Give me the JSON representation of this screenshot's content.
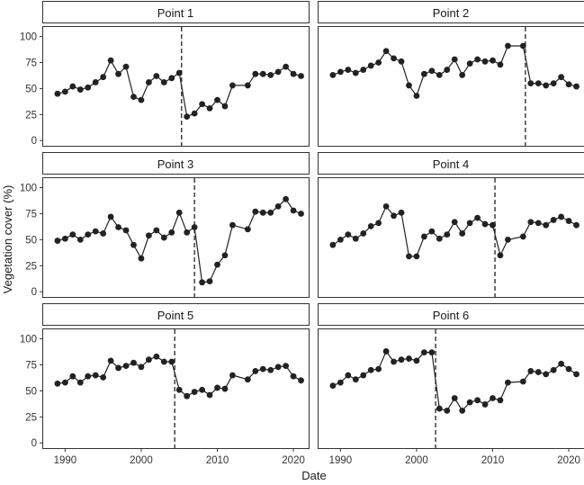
{
  "chart_data": {
    "type": "line",
    "xlabel": "Date",
    "ylabel": "Vegetation cover (%)",
    "xlim": [
      1987,
      2022
    ],
    "ylim": [
      -5,
      110
    ],
    "x_ticks": [
      1990,
      2000,
      2010,
      2020
    ],
    "y_ticks": [
      0,
      25,
      50,
      75,
      100
    ],
    "grid": false,
    "panels": [
      {
        "name": "Point 1",
        "breakpoint": 2005.3,
        "x": [
          1989,
          1990,
          1991,
          1992,
          1993,
          1994,
          1995,
          1996,
          1997,
          1998,
          1999,
          2000,
          2001,
          2002,
          2003,
          2004,
          2005,
          2006,
          2007,
          2008,
          2009,
          2010,
          2011,
          2012,
          2014,
          2015,
          2016,
          2017,
          2018,
          2019,
          2020,
          2021
        ],
        "y": [
          45,
          47,
          52,
          49,
          51,
          56,
          61,
          77,
          64,
          71,
          42,
          39,
          56,
          62,
          56,
          60,
          65,
          23,
          26,
          35,
          31,
          39,
          33,
          53,
          53,
          64,
          64,
          63,
          66,
          71,
          64,
          62
        ]
      },
      {
        "name": "Point 2",
        "breakpoint": 2014.3,
        "x": [
          1989,
          1990,
          1991,
          1992,
          1993,
          1994,
          1995,
          1996,
          1997,
          1998,
          1999,
          2000,
          2001,
          2002,
          2003,
          2004,
          2005,
          2006,
          2007,
          2008,
          2009,
          2010,
          2011,
          2012,
          2014,
          2015,
          2016,
          2017,
          2018,
          2019,
          2020,
          2021
        ],
        "y": [
          63,
          66,
          68,
          65,
          68,
          72,
          75,
          86,
          79,
          76,
          53,
          43,
          64,
          67,
          63,
          68,
          78,
          63,
          74,
          78,
          76,
          77,
          73,
          91,
          91,
          55,
          55,
          53,
          55,
          61,
          54,
          52
        ]
      },
      {
        "name": "Point 3",
        "breakpoint": 2007.0,
        "x": [
          1989,
          1990,
          1991,
          1992,
          1993,
          1994,
          1995,
          1996,
          1997,
          1998,
          1999,
          2000,
          2001,
          2002,
          2003,
          2004,
          2005,
          2006,
          2007,
          2008,
          2009,
          2010,
          2011,
          2012,
          2014,
          2015,
          2016,
          2017,
          2018,
          2019,
          2020,
          2021
        ],
        "y": [
          49,
          51,
          55,
          50,
          55,
          58,
          56,
          72,
          62,
          59,
          45,
          32,
          54,
          59,
          52,
          57,
          76,
          57,
          62,
          9,
          10,
          26,
          35,
          64,
          60,
          77,
          76,
          76,
          82,
          89,
          78,
          75
        ]
      },
      {
        "name": "Point 4",
        "breakpoint": 2010.3,
        "x": [
          1989,
          1990,
          1991,
          1992,
          1993,
          1994,
          1995,
          1996,
          1997,
          1998,
          1999,
          2000,
          2001,
          2002,
          2003,
          2004,
          2005,
          2006,
          2007,
          2008,
          2009,
          2010,
          2011,
          2012,
          2014,
          2015,
          2016,
          2017,
          2018,
          2019,
          2020,
          2021
        ],
        "y": [
          45,
          50,
          55,
          51,
          56,
          63,
          66,
          82,
          73,
          76,
          34,
          34,
          53,
          58,
          51,
          55,
          67,
          56,
          66,
          71,
          65,
          64,
          35,
          50,
          53,
          67,
          66,
          64,
          69,
          72,
          68,
          64
        ]
      },
      {
        "name": "Point 5",
        "breakpoint": 2004.4,
        "x": [
          1989,
          1990,
          1991,
          1992,
          1993,
          1994,
          1995,
          1996,
          1997,
          1998,
          1999,
          2000,
          2001,
          2002,
          2003,
          2004,
          2005,
          2006,
          2007,
          2008,
          2009,
          2010,
          2011,
          2012,
          2014,
          2015,
          2016,
          2017,
          2018,
          2019,
          2020,
          2021
        ],
        "y": [
          57,
          58,
          64,
          58,
          64,
          65,
          63,
          79,
          72,
          74,
          77,
          73,
          80,
          83,
          78,
          78,
          51,
          45,
          49,
          51,
          46,
          53,
          52,
          65,
          61,
          69,
          71,
          70,
          73,
          74,
          64,
          60
        ]
      },
      {
        "name": "Point 6",
        "breakpoint": 2002.5,
        "x": [
          1989,
          1990,
          1991,
          1992,
          1993,
          1994,
          1995,
          1996,
          1997,
          1998,
          1999,
          2000,
          2001,
          2002,
          2003,
          2004,
          2005,
          2006,
          2007,
          2008,
          2009,
          2010,
          2011,
          2012,
          2014,
          2015,
          2016,
          2017,
          2018,
          2019,
          2020,
          2021
        ],
        "y": [
          55,
          58,
          65,
          61,
          65,
          70,
          71,
          88,
          78,
          80,
          81,
          79,
          87,
          87,
          33,
          31,
          43,
          31,
          39,
          41,
          37,
          43,
          41,
          58,
          59,
          69,
          68,
          66,
          70,
          76,
          71,
          66
        ]
      }
    ]
  }
}
